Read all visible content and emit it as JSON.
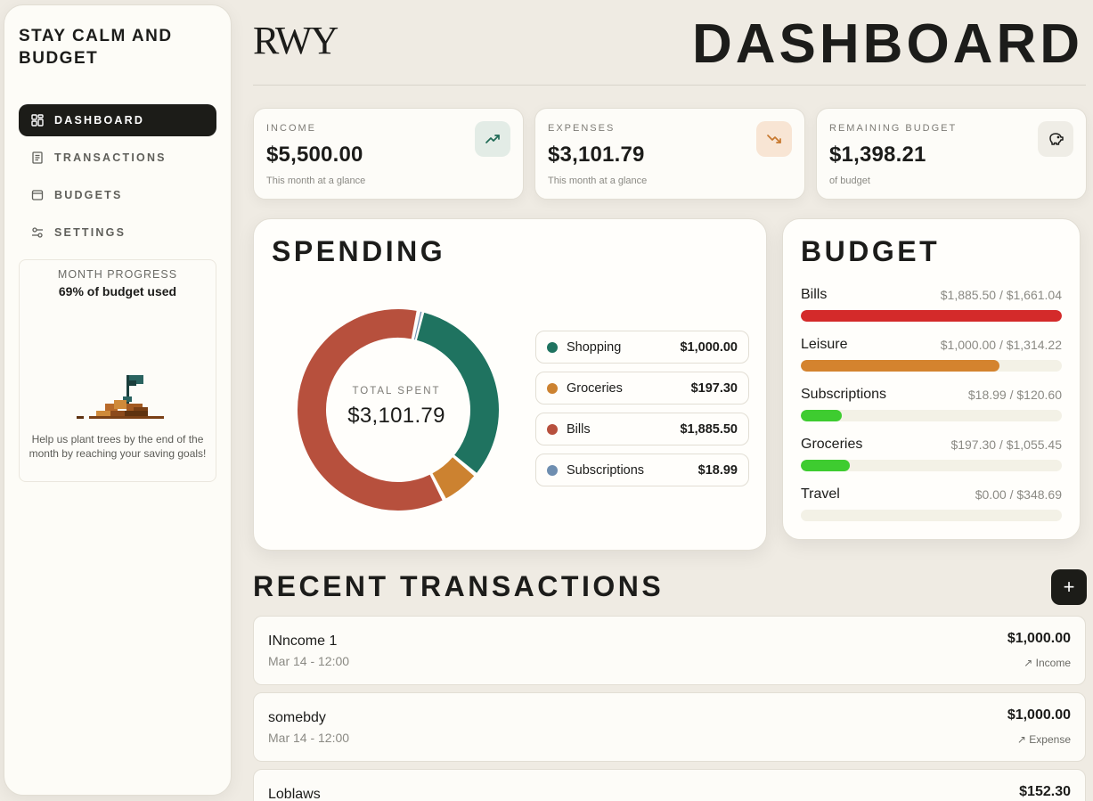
{
  "sidebar": {
    "app_title": "STAY CALM AND BUDGET",
    "nav": [
      {
        "label": "DASHBOARD",
        "icon": "grid-icon",
        "active": true
      },
      {
        "label": "TRANSACTIONS",
        "icon": "receipt-icon",
        "active": false
      },
      {
        "label": "BUDGETS",
        "icon": "wallet-icon",
        "active": false
      },
      {
        "label": "SETTINGS",
        "icon": "sliders-icon",
        "active": false
      }
    ],
    "progress": {
      "title": "MONTH PROGRESS",
      "subtitle": "69% of budget used",
      "text": "Help us plant trees by the end of the month by reaching your saving goals!"
    }
  },
  "header": {
    "logo": "RWY",
    "title": "DASHBOARD"
  },
  "stats": {
    "income": {
      "label": "INCOME",
      "value": "$5,500.00",
      "note": "This month at a glance",
      "icon": "trend-up-icon"
    },
    "expenses": {
      "label": "EXPENSES",
      "value": "$3,101.79",
      "note": "This month at a glance",
      "icon": "trend-down-icon"
    },
    "remaining": {
      "label": "REMAINING BUDGET",
      "value": "$1,398.21",
      "note": "of budget",
      "icon": "piggy-bank-icon"
    }
  },
  "spending": {
    "title": "SPENDING",
    "center_label": "TOTAL SPENT",
    "center_value": "$3,101.79",
    "legend": [
      {
        "name": "Shopping",
        "value": "$1,000.00",
        "color": "#1f7360"
      },
      {
        "name": "Groceries",
        "value": "$197.30",
        "color": "#cc8230"
      },
      {
        "name": "Bills",
        "value": "$1,885.50",
        "color": "#b7503d"
      },
      {
        "name": "Subscriptions",
        "value": "$18.99",
        "color": "#6e8eb0"
      }
    ]
  },
  "budget": {
    "title": "BUDGET",
    "items": [
      {
        "name": "Bills",
        "amount": "$1,885.50 / $1,661.04",
        "fraction": 1.0,
        "color": "#d42a2a"
      },
      {
        "name": "Leisure",
        "amount": "$1,000.00 / $1,314.22",
        "fraction": 0.761,
        "color": "#d4832e"
      },
      {
        "name": "Subscriptions",
        "amount": "$18.99 / $120.60",
        "fraction": 0.157,
        "color": "#3ecc30"
      },
      {
        "name": "Groceries",
        "amount": "$197.30 / $1,055.45",
        "fraction": 0.187,
        "color": "#3ecc30"
      },
      {
        "name": "Travel",
        "amount": "$0.00 / $348.69",
        "fraction": 0.0,
        "color": "#3ecc30"
      }
    ]
  },
  "transactions": {
    "title": "RECENT TRANSACTIONS",
    "add_label": "+",
    "items": [
      {
        "name": "INncome 1",
        "date": "Mar 14 - 12:00",
        "amount": "$1,000.00",
        "type": "↗ Income"
      },
      {
        "name": "somebdy",
        "date": "Mar 14 - 12:00",
        "amount": "$1,000.00",
        "type": "↗ Expense"
      },
      {
        "name": "Loblaws",
        "date": "",
        "amount": "$152.30",
        "type": ""
      }
    ]
  }
}
